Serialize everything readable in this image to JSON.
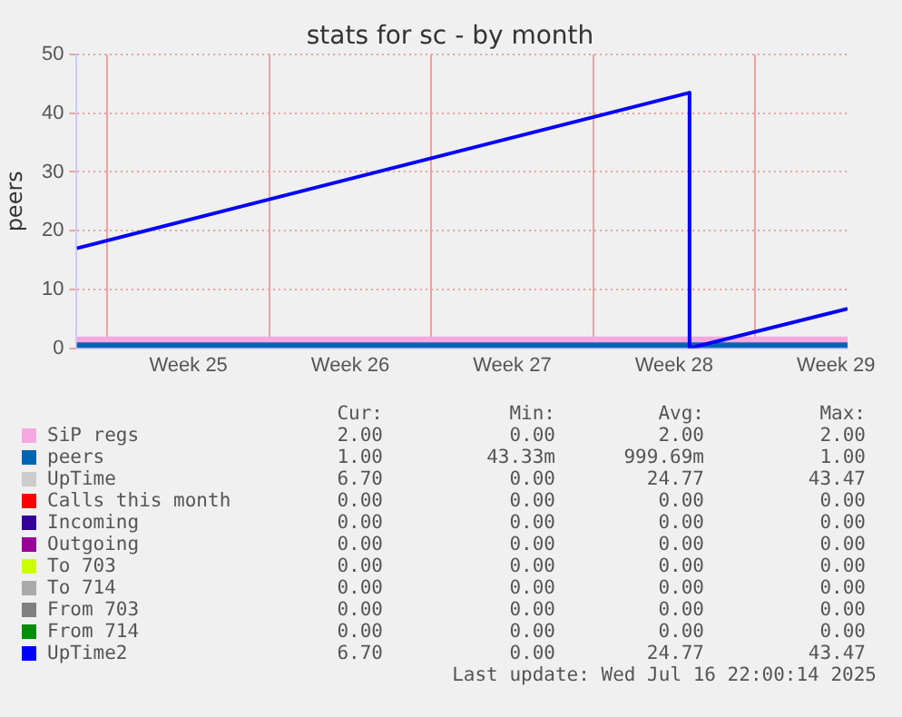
{
  "chart_data": {
    "type": "line",
    "title": "stats for sc - by month",
    "ylabel": "peers",
    "xlim": [
      "2025-06-14T16:00",
      "2025-07-18T00:00"
    ],
    "xticks": [
      {
        "value": "2025-06-16",
        "label": null
      },
      {
        "value": "2025-06-19T12:00",
        "label": "Week 25"
      },
      {
        "value": "2025-06-23",
        "label": null
      },
      {
        "value": "2025-06-26T12:00",
        "label": "Week 26"
      },
      {
        "value": "2025-06-30",
        "label": null
      },
      {
        "value": "2025-07-03T12:00",
        "label": "Week 27"
      },
      {
        "value": "2025-07-07",
        "label": null
      },
      {
        "value": "2025-07-10T12:00",
        "label": "Week 28"
      },
      {
        "value": "2025-07-14",
        "label": null
      },
      {
        "value": "2025-07-17T12:00",
        "label": "Week 29"
      }
    ],
    "ylim": [
      0,
      50
    ],
    "yticks": [
      0,
      10,
      20,
      30,
      40,
      50
    ],
    "grid": true,
    "legend": "bottom",
    "series": [
      {
        "name": "SiP regs",
        "color": "#f8a8e0",
        "type": "area",
        "x": [
          "2025-06-14T16:00",
          "2025-07-18T00:00"
        ],
        "values": [
          2,
          2
        ]
      },
      {
        "name": "peers",
        "color": "#0066b3",
        "type": "area",
        "x": [
          "2025-06-14T16:00",
          "2025-07-18T00:00"
        ],
        "values": [
          1,
          1
        ]
      },
      {
        "name": "UpTime",
        "color": "#cccccc"
      },
      {
        "name": "Calls this month",
        "color": "#ff0000"
      },
      {
        "name": "Incoming",
        "color": "#330099"
      },
      {
        "name": "Outgoing",
        "color": "#990099"
      },
      {
        "name": "To 703",
        "color": "#ccff00"
      },
      {
        "name": "To 714",
        "color": "#aaaaaa"
      },
      {
        "name": "From 703",
        "color": "#808080"
      },
      {
        "name": "From 714",
        "color": "#008f00"
      },
      {
        "name": "UpTime2",
        "color": "#0000ff",
        "x": [
          "2025-06-14T16:00",
          "2025-07-11T04:00",
          "2025-07-11T04:00",
          "2025-07-18T00:00"
        ],
        "values": [
          17,
          43.5,
          0,
          6.7
        ]
      }
    ],
    "annotations": [
      "Cur:",
      "Min:",
      "Avg:",
      "Max:",
      "2.00",
      "0.00",
      "2.00",
      "2.00",
      "1.00",
      "43.33m",
      "999.69m",
      "1.00",
      "6.70",
      "0.00",
      "24.77",
      "43.47",
      "0.00",
      "0.00",
      "0.00",
      "0.00",
      "0.00",
      "0.00",
      "0.00",
      "0.00",
      "0.00",
      "0.00",
      "0.00",
      "0.00",
      "0.00",
      "0.00",
      "0.00",
      "0.00",
      "0.00",
      "0.00",
      "0.00",
      "0.00",
      "0.00",
      "0.00",
      "0.00",
      "0.00",
      "0.00",
      "0.00",
      "0.00",
      "0.00",
      "6.70",
      "0.00",
      "24.77",
      "43.47",
      "Last update: Wed Jul 16 22:00:14 2025"
    ]
  }
}
